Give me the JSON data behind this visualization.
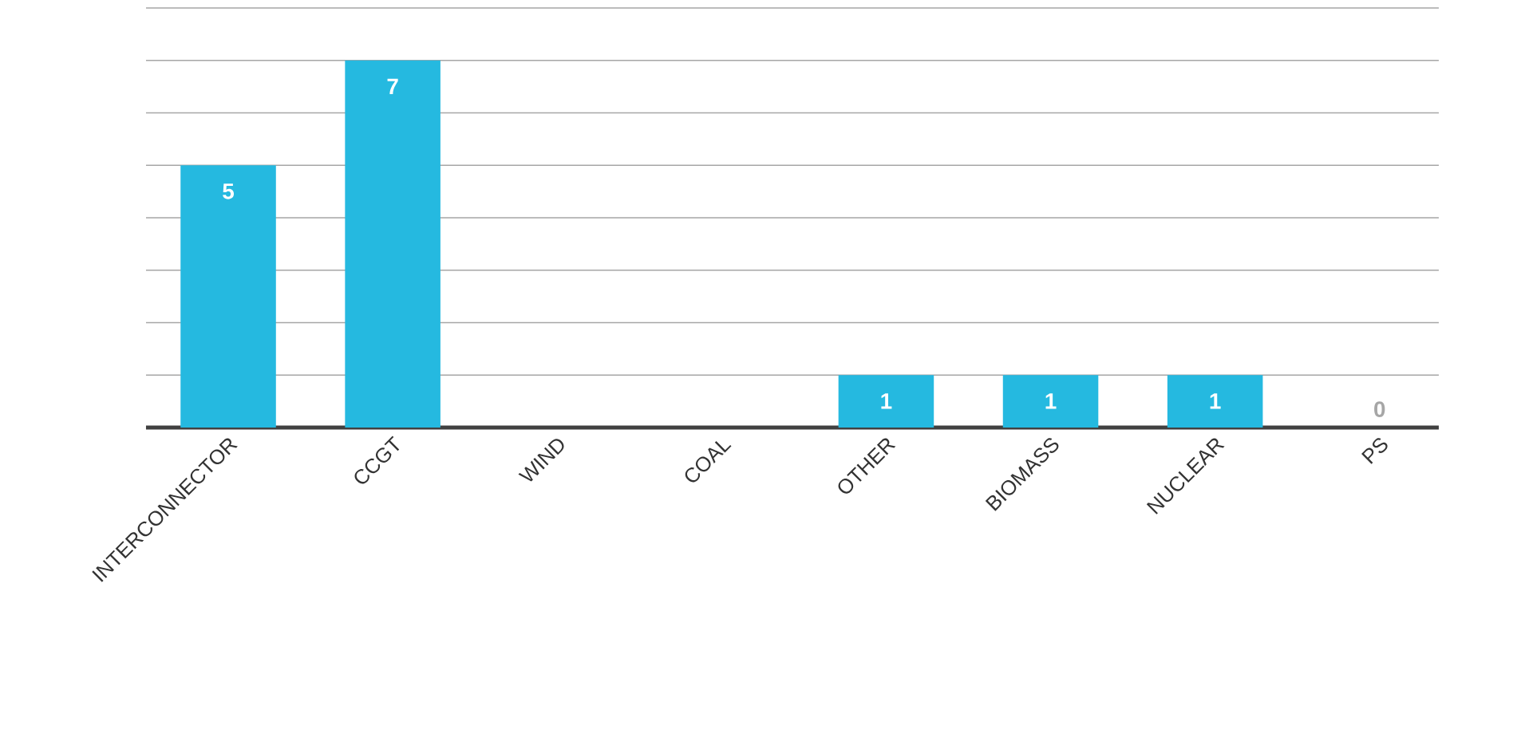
{
  "chart_data": {
    "type": "bar",
    "categories": [
      "INTERCONNECTOR",
      "CCGT",
      "WIND",
      "COAL",
      "OTHER",
      "BIOMASS",
      "NUCLEAR",
      "PS"
    ],
    "values": [
      5,
      7,
      0,
      0,
      1,
      1,
      1,
      0
    ],
    "color": "#25b9e0",
    "value_labels": [
      "5",
      "7",
      null,
      null,
      "1",
      "1",
      "1",
      "0"
    ],
    "grid": "y",
    "ylim": [
      0,
      8
    ],
    "yticks": [
      {
        "value": 1,
        "label": null
      },
      {
        "value": 2,
        "label": null
      },
      {
        "value": 3,
        "label": null
      },
      {
        "value": 4,
        "label": null
      },
      {
        "value": 5,
        "label": null
      },
      {
        "value": 6,
        "label": null
      },
      {
        "value": 7,
        "label": null
      },
      {
        "value": 8,
        "label": null
      }
    ],
    "tick_labels": "x"
  }
}
